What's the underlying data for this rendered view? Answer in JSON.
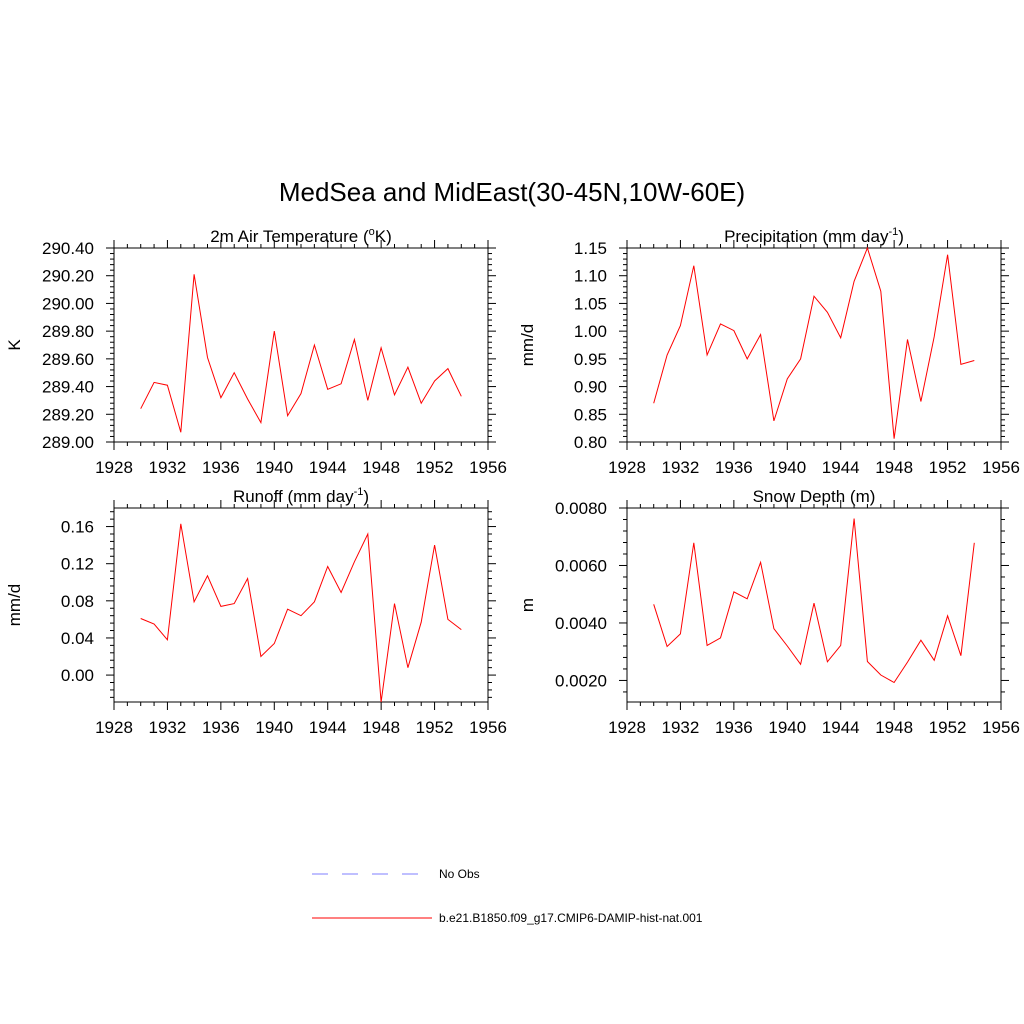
{
  "figure_title": "MedSea and MidEast(30-45N,10W-60E)",
  "line_color": "#ff0000",
  "obs_color": "#9999ff",
  "legend": {
    "obs_label": "No Obs",
    "model_label": "b.e21.B1850.f09_g17.CMIP6-DAMIP-hist-nat.001"
  },
  "chart_data": [
    {
      "type": "line",
      "title": "2m Air Temperature (",
      "title_sup": "o",
      "title_after": "K)",
      "ylabel": "K",
      "x_ticks": [
        "1928",
        "1932",
        "1936",
        "1940",
        "1944",
        "1948",
        "1952",
        "1956"
      ],
      "y_ticks": [
        "290.40",
        "290.20",
        "290.00",
        "289.80",
        "289.60",
        "289.40",
        "289.20",
        "289.00"
      ],
      "xlim": [
        1928,
        1956
      ],
      "ylim": [
        289.0,
        290.4
      ],
      "series": [
        {
          "x": [
            1930,
            1931,
            1932,
            1933,
            1934,
            1935,
            1936,
            1937,
            1938,
            1939,
            1940,
            1941,
            1942,
            1943,
            1944,
            1945,
            1946,
            1947,
            1948,
            1949,
            1950,
            1951,
            1952,
            1953,
            1954
          ],
          "values": [
            289.24,
            289.43,
            289.41,
            289.07,
            290.21,
            289.61,
            289.32,
            289.5,
            289.31,
            289.14,
            289.8,
            289.19,
            289.35,
            289.7,
            289.38,
            289.42,
            289.74,
            289.3,
            289.68,
            289.34,
            289.54,
            289.28,
            289.44,
            289.53,
            289.33
          ]
        }
      ]
    },
    {
      "type": "line",
      "title": "Precipitation (mm day",
      "title_sup": "-1",
      "title_after": ")",
      "ylabel": "mm/d",
      "x_ticks": [
        "1928",
        "1932",
        "1936",
        "1940",
        "1944",
        "1948",
        "1952",
        "1956"
      ],
      "y_ticks": [
        "1.15",
        "1.10",
        "1.05",
        "1.00",
        "0.95",
        "0.90",
        "0.85",
        "0.80"
      ],
      "xlim": [
        1928,
        1956
      ],
      "ylim": [
        0.8,
        1.15
      ],
      "series": [
        {
          "x": [
            1930,
            1931,
            1932,
            1933,
            1934,
            1935,
            1936,
            1937,
            1938,
            1939,
            1940,
            1941,
            1942,
            1943,
            1944,
            1945,
            1946,
            1947,
            1948,
            1949,
            1950,
            1951,
            1952,
            1953,
            1954
          ],
          "values": [
            0.87,
            0.957,
            1.01,
            1.118,
            0.957,
            1.013,
            1.001,
            0.95,
            0.994,
            0.838,
            0.914,
            0.95,
            1.063,
            1.034,
            0.988,
            1.09,
            1.15,
            1.072,
            0.806,
            0.985,
            0.873,
            0.99,
            1.138,
            0.94,
            0.947
          ]
        }
      ]
    },
    {
      "type": "line",
      "title": "Runoff (mm day",
      "title_sup": "-1",
      "title_after": ")",
      "ylabel": "mm/d",
      "x_ticks": [
        "1928",
        "1932",
        "1936",
        "1940",
        "1944",
        "1948",
        "1952",
        "1956"
      ],
      "y_ticks": [
        "0.16",
        "0.12",
        "0.08",
        "0.04",
        "0.00"
      ],
      "xlim": [
        1928,
        1956
      ],
      "ylim": [
        -0.029,
        0.18
      ],
      "series": [
        {
          "x": [
            1930,
            1931,
            1932,
            1933,
            1934,
            1935,
            1936,
            1937,
            1938,
            1939,
            1940,
            1941,
            1942,
            1943,
            1944,
            1945,
            1946,
            1947,
            1948,
            1949,
            1950,
            1951,
            1952,
            1953,
            1954
          ],
          "values": [
            0.061,
            0.055,
            0.038,
            0.163,
            0.079,
            0.107,
            0.074,
            0.077,
            0.104,
            0.02,
            0.034,
            0.071,
            0.064,
            0.079,
            0.117,
            0.089,
            0.122,
            0.152,
            -0.029,
            0.077,
            0.008,
            0.057,
            0.14,
            0.06,
            0.049
          ]
        }
      ]
    },
    {
      "type": "line",
      "title": "Snow Depth (m)",
      "title_sup": "",
      "title_after": "",
      "ylabel": "m",
      "x_ticks": [
        "1928",
        "1932",
        "1936",
        "1940",
        "1944",
        "1948",
        "1952",
        "1956"
      ],
      "y_ticks": [
        "0.0080",
        "0.0060",
        "0.0040",
        "0.0020"
      ],
      "xlim": [
        1928,
        1956
      ],
      "ylim": [
        0.00125,
        0.008
      ],
      "series": [
        {
          "x": [
            1930,
            1931,
            1932,
            1933,
            1934,
            1935,
            1936,
            1937,
            1938,
            1939,
            1940,
            1941,
            1942,
            1943,
            1944,
            1945,
            1946,
            1947,
            1948,
            1949,
            1950,
            1951,
            1952,
            1953,
            1954
          ],
          "values": [
            0.00465,
            0.00318,
            0.00362,
            0.00679,
            0.00322,
            0.00348,
            0.00508,
            0.00484,
            0.00611,
            0.0038,
            0.0032,
            0.00256,
            0.00469,
            0.00265,
            0.00322,
            0.00763,
            0.00266,
            0.00219,
            0.00193,
            0.00264,
            0.0034,
            0.0027,
            0.00425,
            0.00286,
            0.00679
          ]
        }
      ]
    }
  ]
}
